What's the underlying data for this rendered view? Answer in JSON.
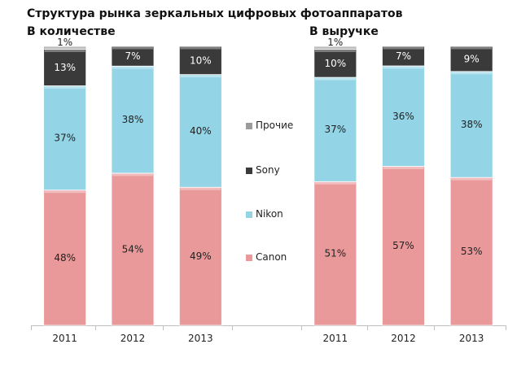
{
  "chart_data": {
    "type": "bar",
    "stacked": true,
    "normalized": true,
    "title": "Структура рынка зеркальных цифровых фотоаппаратов",
    "legend_position": "center",
    "series_meta": [
      {
        "name": "Canon",
        "color": "#e9999a"
      },
      {
        "name": "Nikon",
        "color": "#93d4e7"
      },
      {
        "name": "Sony",
        "color": "#3a3a3a"
      },
      {
        "name": "Прочие",
        "color": "#9b9b9b"
      }
    ],
    "legend_order": [
      "Прочие",
      "Sony",
      "Nikon",
      "Canon"
    ],
    "panels": [
      {
        "subtitle": "В количестве",
        "categories": [
          "2011",
          "2012",
          "2013"
        ],
        "series": [
          {
            "name": "Canon",
            "values": [
              48,
              54,
              49
            ],
            "labels": [
              "48%",
              "54%",
              "49%"
            ]
          },
          {
            "name": "Nikon",
            "values": [
              37,
              38,
              40
            ],
            "labels": [
              "37%",
              "38%",
              "40%"
            ]
          },
          {
            "name": "Sony",
            "values": [
              13,
              7,
              10
            ],
            "labels": [
              "13%",
              "7%",
              "10%"
            ]
          },
          {
            "name": "Прочие",
            "values": [
              1,
              0,
              0
            ],
            "labels": [
              "1%",
              "",
              ""
            ]
          }
        ]
      },
      {
        "subtitle": "В выручке",
        "categories": [
          "2011",
          "2012",
          "2013"
        ],
        "series": [
          {
            "name": "Canon",
            "values": [
              51,
              57,
              53
            ],
            "labels": [
              "51%",
              "57%",
              "53%"
            ]
          },
          {
            "name": "Nikon",
            "values": [
              37,
              36,
              38
            ],
            "labels": [
              "37%",
              "36%",
              "38%"
            ]
          },
          {
            "name": "Sony",
            "values": [
              10,
              7,
              9
            ],
            "labels": [
              "10%",
              "7%",
              "9%"
            ]
          },
          {
            "name": "Прочие",
            "values": [
              1,
              0,
              0
            ],
            "labels": [
              "1%",
              "",
              ""
            ]
          }
        ]
      }
    ]
  }
}
